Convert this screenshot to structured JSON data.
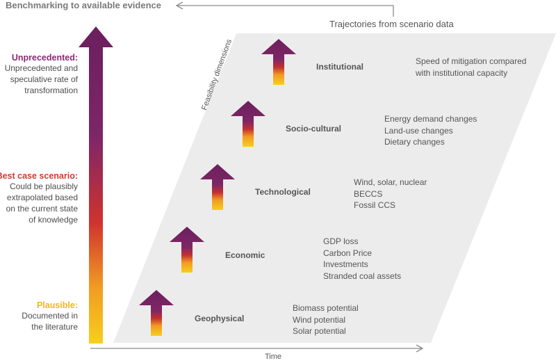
{
  "header": {
    "benchmark_label": "Benchmarking to available evidence",
    "trajectory_label": "Trajectories from scenario data"
  },
  "axes": {
    "time_label": "Time",
    "feasibility_label": "Feasibility dimensions"
  },
  "levels": [
    {
      "title": "Unprecedented:",
      "color": "#8b2a73",
      "desc": [
        "Unprecedented and",
        "speculative rate of",
        "transformation"
      ]
    },
    {
      "title": "Best case scenario:",
      "color": "#d13b33",
      "desc": [
        "Could be plausibly",
        "extrapolated based",
        "on the current state",
        "of knowledge"
      ]
    },
    {
      "title": "Plausible:",
      "color": "#f4c51d",
      "desc": [
        "Documented in",
        "the literature"
      ]
    }
  ],
  "dimensions": [
    {
      "name": "Institutional",
      "items": [
        "Speed of mitigation compared",
        "with institutional capacity"
      ]
    },
    {
      "name": "Socio-cultural",
      "items": [
        "Energy demand changes",
        "Land-use changes",
        "Dietary changes"
      ]
    },
    {
      "name": "Technological",
      "items": [
        "Wind, solar, nuclear",
        "BECCS",
        "Fossil CCS"
      ]
    },
    {
      "name": "Economic",
      "items": [
        "GDP loss",
        "Carbon Price",
        "Investments",
        "Stranded coal assets"
      ]
    },
    {
      "name": "Geophysical",
      "items": [
        "Biomass potential",
        "Wind potential",
        "Solar potential"
      ]
    }
  ],
  "colors": {
    "gradient_top": "#6b1f5e",
    "gradient_mid": "#d0332f",
    "gradient_bottom": "#f7c81c",
    "panel": "#ececec",
    "axis": "#8a8a8a"
  }
}
